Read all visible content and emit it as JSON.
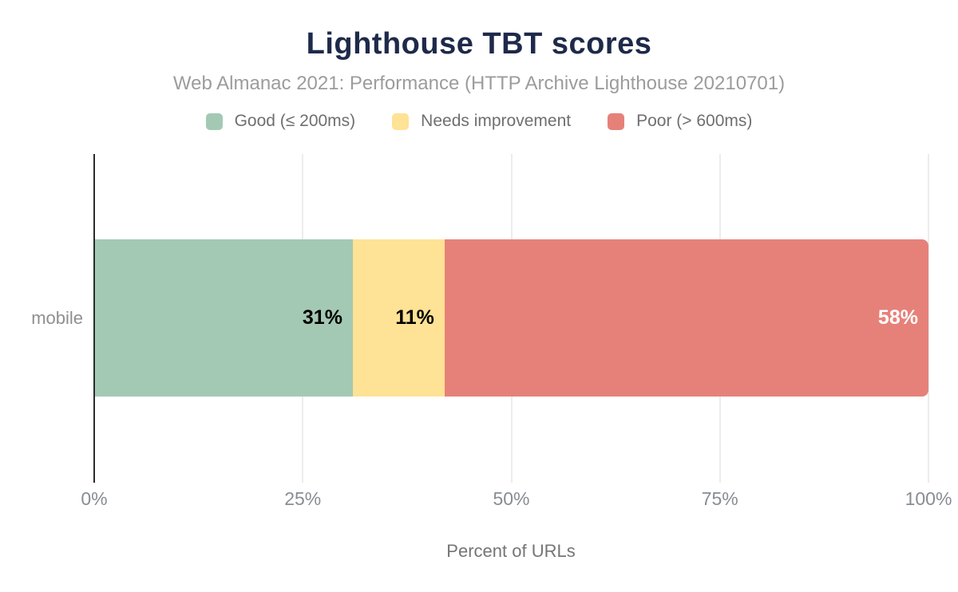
{
  "chart": {
    "title": "Lighthouse TBT scores",
    "subtitle": "Web Almanac 2021: Performance (HTTP Archive Lighthouse 20210701)",
    "x_axis_title": "Percent of URLs"
  },
  "chart_data": {
    "type": "bar",
    "orientation": "horizontal",
    "stacked": true,
    "title": "Lighthouse TBT scores",
    "subtitle": "Web Almanac 2021: Performance (HTTP Archive Lighthouse 20210701)",
    "xlabel": "Percent of URLs",
    "ylabel": "",
    "categories": [
      "mobile"
    ],
    "series": [
      {
        "name": "Good (≤ 200ms)",
        "color": "#a3c9b4",
        "label_color": "#000000",
        "values": [
          31
        ],
        "data_label": "31%"
      },
      {
        "name": "Needs improvement",
        "color": "#fee295",
        "label_color": "#000000",
        "values": [
          11
        ],
        "data_label": "11%"
      },
      {
        "name": "Poor (> 600ms)",
        "color": "#e6817a",
        "label_color": "#ffffff",
        "values": [
          58
        ],
        "data_label": "58%"
      }
    ],
    "x_ticks": [
      {
        "label": "0%",
        "value": 0
      },
      {
        "label": "25%",
        "value": 25
      },
      {
        "label": "50%",
        "value": 50
      },
      {
        "label": "75%",
        "value": 75
      },
      {
        "label": "100%",
        "value": 100
      }
    ],
    "xlim": [
      0,
      100
    ],
    "grid": "vertical-light",
    "legend_position": "top"
  },
  "colors": {
    "title": "#1e2a4a",
    "subtitle": "#9c9c9c",
    "legend_text": "#6f6f6f",
    "tick_text": "#878d93",
    "gridline": "#ececec",
    "axis_line": "#2b2b2b",
    "background": "#ffffff"
  }
}
